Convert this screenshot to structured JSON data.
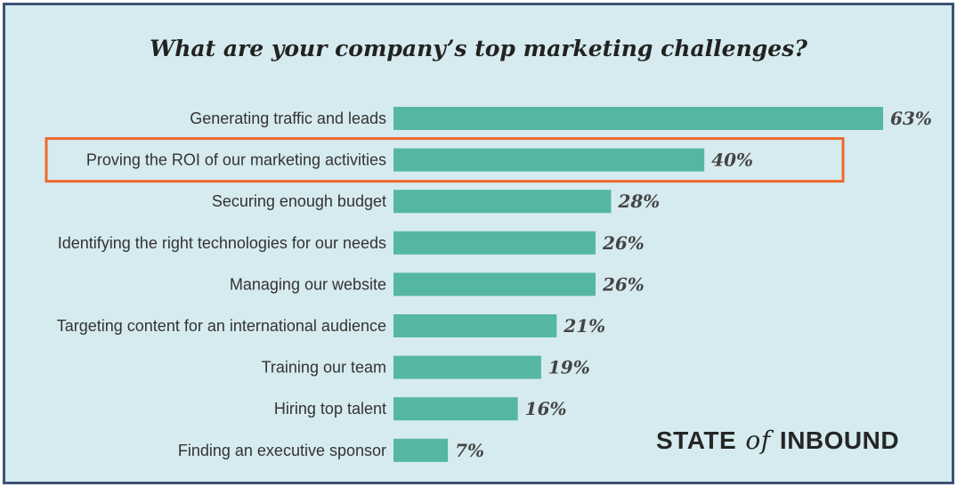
{
  "chart_data": {
    "type": "bar",
    "orientation": "horizontal",
    "title": "What are your company’s top marketing challenges?",
    "categories": [
      "Generating traffic and leads",
      "Proving the ROI of our marketing activities",
      "Securing enough budget",
      "Identifying the right technologies for our needs",
      "Managing our website",
      "Targeting content for an international audience",
      "Training our team",
      "Hiring top talent",
      "Finding an executive sponsor"
    ],
    "values": [
      63,
      40,
      28,
      26,
      26,
      21,
      19,
      16,
      7
    ],
    "value_labels": [
      "63%",
      "40%",
      "28%",
      "26%",
      "26%",
      "21%",
      "19%",
      "16%",
      "7%"
    ],
    "unit": "%",
    "highlighted_category": "Proving the ROI of our marketing activities",
    "xlim": [
      0,
      63
    ],
    "grid": false,
    "legend": "none"
  },
  "brand": {
    "part1": "STATE",
    "part2": "of",
    "part3": "INBOUND"
  },
  "colors": {
    "background": "#d6ebf0",
    "bar": "#55b7a3",
    "highlight": "#ec6a2c",
    "frame": "#3d5275"
  }
}
